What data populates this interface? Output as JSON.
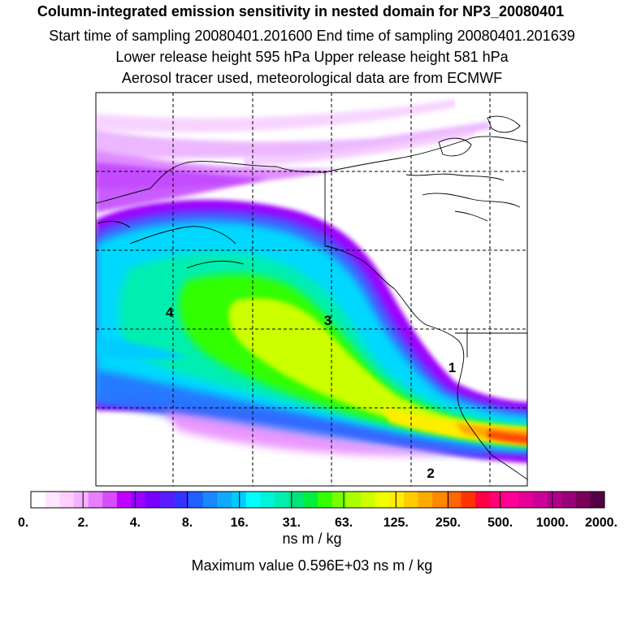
{
  "header": {
    "title": "Column-integrated emission sensitivity in nested domain for NP3_20080401",
    "sampling": "Start time of sampling 20080401.201600     End time of sampling 20080401.201639",
    "release": "Lower release height  595 hPa       Upper release height  581 hPa",
    "tracer": "Aerosol tracer used, meteorological data are from ECMWF"
  },
  "map": {
    "markers": [
      {
        "label": "4",
        "lon": -158,
        "lat": 51
      },
      {
        "label": "3",
        "lon": -138,
        "lat": 50.5
      },
      {
        "label": "2",
        "lon": -125,
        "lat": 40.8
      },
      {
        "label": "1",
        "lon": -122.3,
        "lat": 47.5
      }
    ]
  },
  "colorbar": {
    "tick_labels": [
      "0.",
      "2.",
      "4.",
      "8.",
      "16.",
      "31.",
      "63.",
      "125.",
      "250.",
      "500.",
      "1000.",
      "2000."
    ],
    "colors": [
      "#ffffff",
      "#ffe6ff",
      "#ffcfff",
      "#f5b3ff",
      "#e680ff",
      "#d64dff",
      "#bf00ff",
      "#9900ff",
      "#7700ff",
      "#5a1bff",
      "#3333ff",
      "#2060ff",
      "#1a88ff",
      "#11aaff",
      "#00ccff",
      "#00ffff",
      "#00f5d8",
      "#00eeb0",
      "#00e67a",
      "#00ee40",
      "#33ff00",
      "#77ff00",
      "#aaff00",
      "#ccff00",
      "#eeff00",
      "#ffee00",
      "#ffcc00",
      "#ffaa00",
      "#ff8800",
      "#ff6600",
      "#ff3300",
      "#ff0044",
      "#ff0077",
      "#ff0099",
      "#e60099",
      "#cc0099",
      "#b3008c",
      "#990077",
      "#7a005c",
      "#550044"
    ],
    "units": "ns m / kg",
    "max_value_text": "Maximum value  0.596E+03 ns m / kg"
  }
}
